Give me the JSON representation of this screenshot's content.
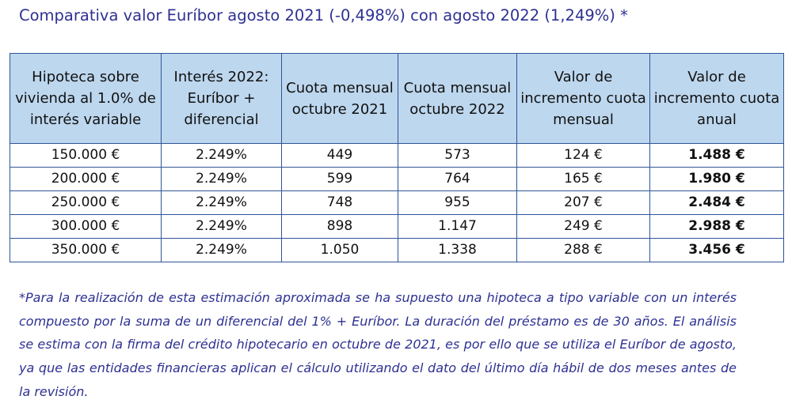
{
  "title": "Comparativa valor Euríbor agosto 2021 (-0,498%) con agosto 2022 (1,249%) *",
  "table": {
    "headers": [
      "Hipoteca sobre vivienda al 1.0% de interés variable",
      "Interés 2022: Euríbor + diferencial",
      "Cuota mensual octubre 2021",
      "Cuota mensual octubre 2022",
      "Valor de incremento cuota mensual",
      "Valor de incremento cuota anual"
    ],
    "rows": [
      [
        "150.000 €",
        "2.249%",
        "449",
        "573",
        "124 €",
        "1.488 €"
      ],
      [
        "200.000 €",
        "2.249%",
        "599",
        "764",
        "165 €",
        "1.980 €"
      ],
      [
        "250.000 €",
        "2.249%",
        "748",
        "955",
        "207 €",
        "2.484 €"
      ],
      [
        "300.000 €",
        "2.249%",
        "898",
        "1.147",
        "249 €",
        "2.988 €"
      ],
      [
        "350.000 €",
        "2.249%",
        "1.050",
        "1.338",
        "288 €",
        "3.456 €"
      ]
    ]
  },
  "note": "*Para la realización de esta estimación aproximada se ha supuesto una hipoteca a tipo variable con un interés compuesto por la suma de un diferencial del 1% + Euríbor. La duración del préstamo es de 30 años. El análisis se estima con la firma del crédito hipotecario en octubre de 2021, es por ello que se utiliza el Euríbor de agosto, ya que las entidades financieras aplican el cálculo utilizando el dato del último día hábil de dos meses antes de la revisión."
}
